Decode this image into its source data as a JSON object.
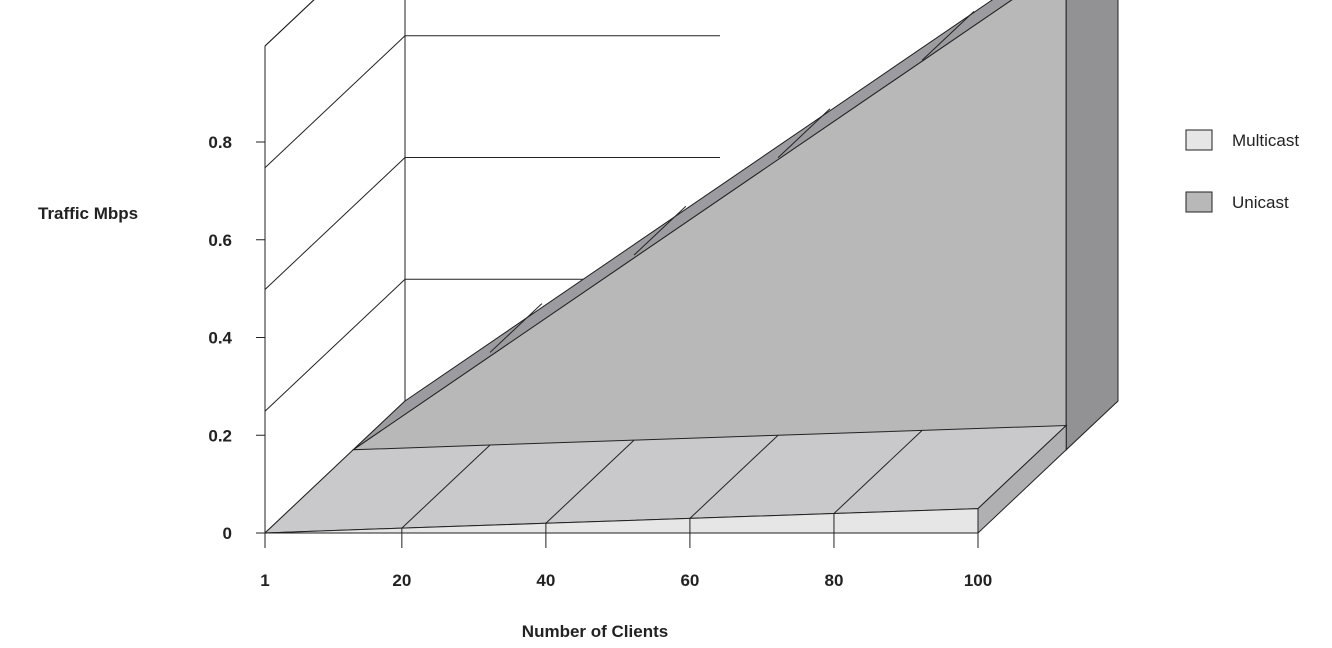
{
  "chart_data": {
    "type": "area",
    "projection": "3d",
    "x_ticks": [
      "1",
      "20",
      "40",
      "60",
      "80",
      "100"
    ],
    "x": [
      1,
      20,
      40,
      60,
      80,
      100
    ],
    "y_ticks": [
      "0",
      "0.2",
      "0.4",
      "0.6",
      "0.8"
    ],
    "ylim": [
      0,
      0.8
    ],
    "ylabel": "Traffic Mbps",
    "xlabel": "Number of Clients",
    "series": [
      {
        "name": "Multicast",
        "values": [
          0.0,
          0.008,
          0.016,
          0.024,
          0.032,
          0.04
        ],
        "color": "#e6e6e6"
      },
      {
        "name": "Unicast",
        "values": [
          0.0,
          0.16,
          0.32,
          0.48,
          0.64,
          0.8
        ],
        "color": "#b8b8b8"
      }
    ],
    "legend_position": "right",
    "grid": true
  }
}
